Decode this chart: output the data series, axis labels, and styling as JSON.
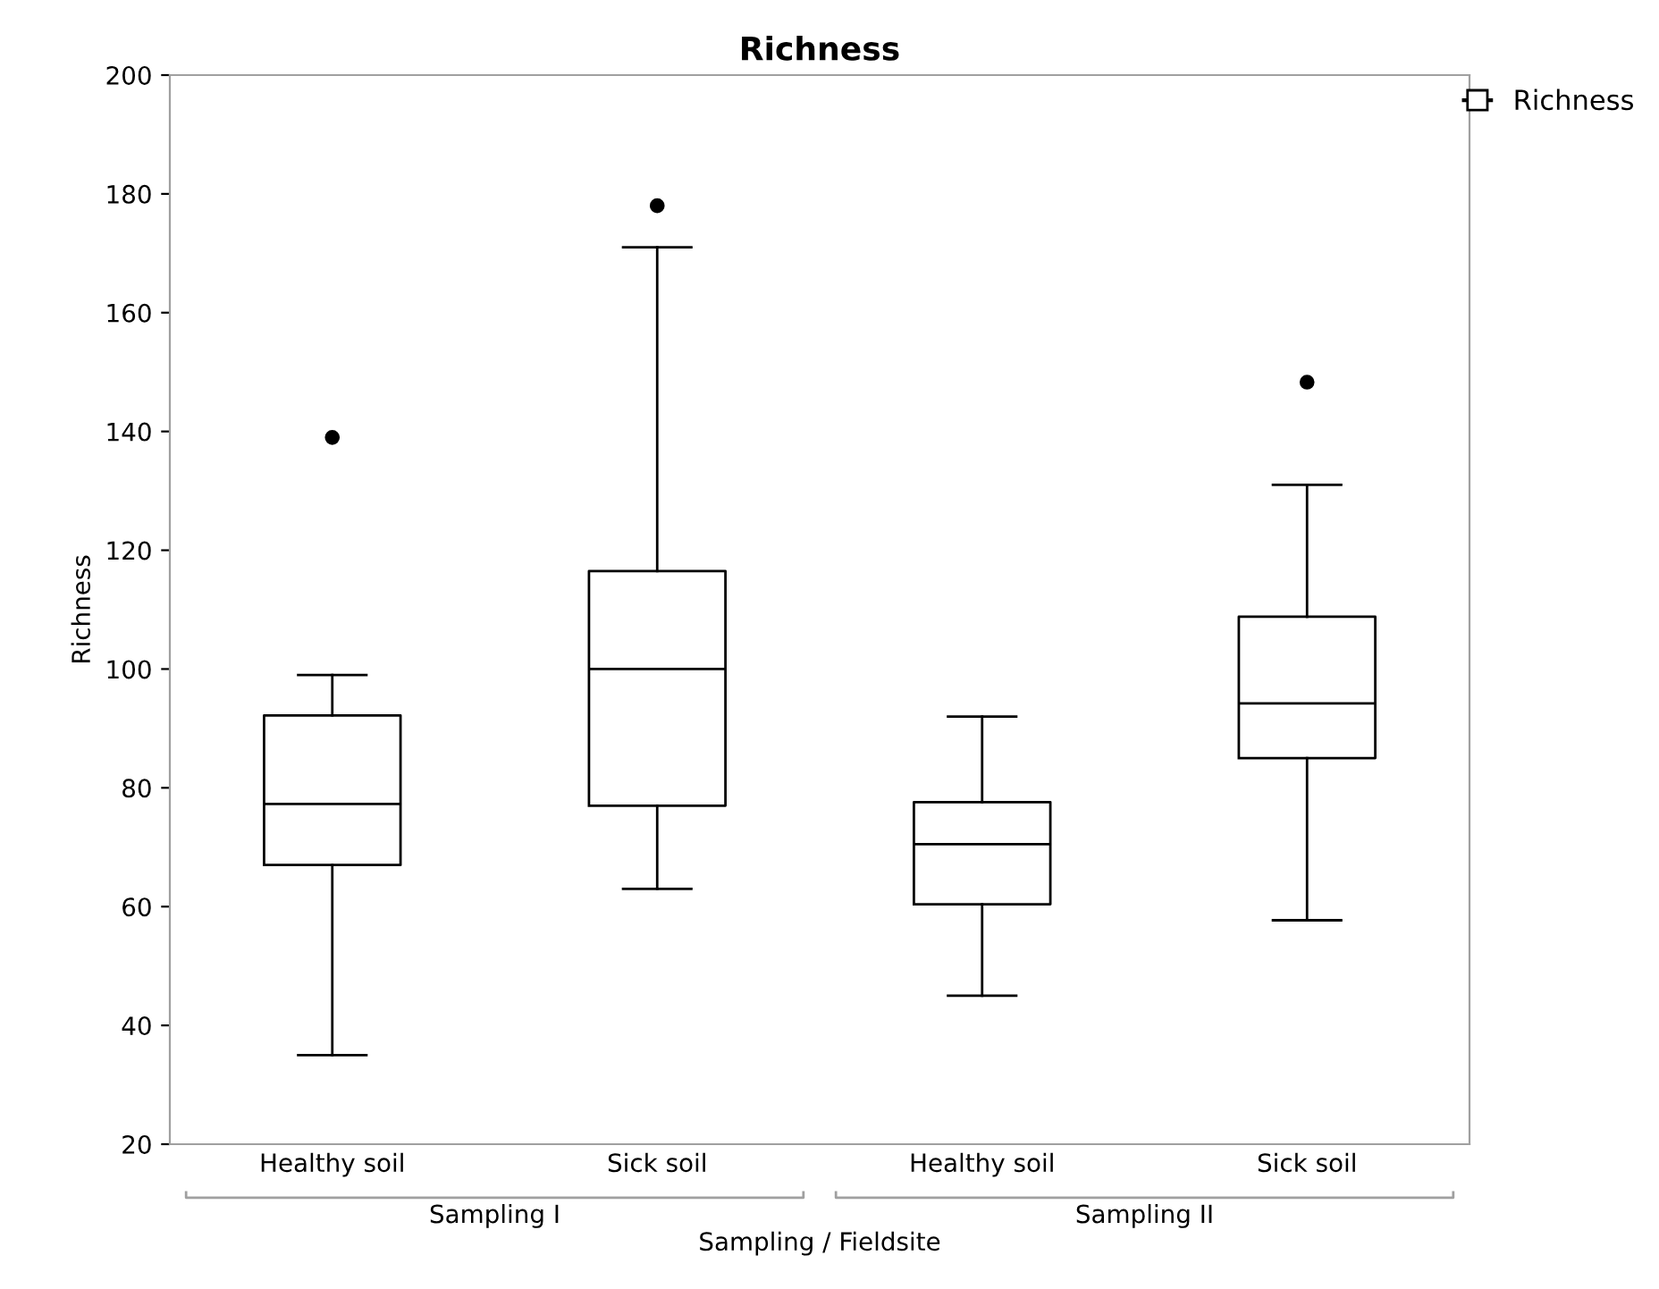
{
  "chart_data": {
    "type": "box",
    "title": "Richness",
    "xlabel": "Sampling / Fieldsite",
    "ylabel": "Richness",
    "categories": [
      "Healthy soil",
      "Sick soil",
      "Healthy soil",
      "Sick soil"
    ],
    "series": [
      {
        "name": "Richness",
        "color": "#000000",
        "boxes": [
          {
            "low": 35,
            "q1": 67,
            "median": 77.3,
            "q3": 92.2,
            "high": 99,
            "outliers": [
              139
            ]
          },
          {
            "low": 63,
            "q1": 77,
            "median": 100,
            "q3": 116.5,
            "high": 171,
            "outliers": [
              178
            ]
          },
          {
            "low": 45,
            "q1": 60.4,
            "median": 70.5,
            "q3": 77.6,
            "high": 92
          },
          {
            "low": 57.7,
            "q1": 85,
            "median": 94.2,
            "q3": 108.8,
            "high": 131,
            "outliers": [
              148.3
            ]
          }
        ]
      }
    ],
    "ylim": [
      20,
      200
    ],
    "yticks": [
      20,
      40,
      60,
      80,
      100,
      120,
      140,
      160,
      180,
      200
    ],
    "grid": false,
    "legend": "top right",
    "annotations": [
      "Sampling I",
      "Sampling II"
    ]
  }
}
